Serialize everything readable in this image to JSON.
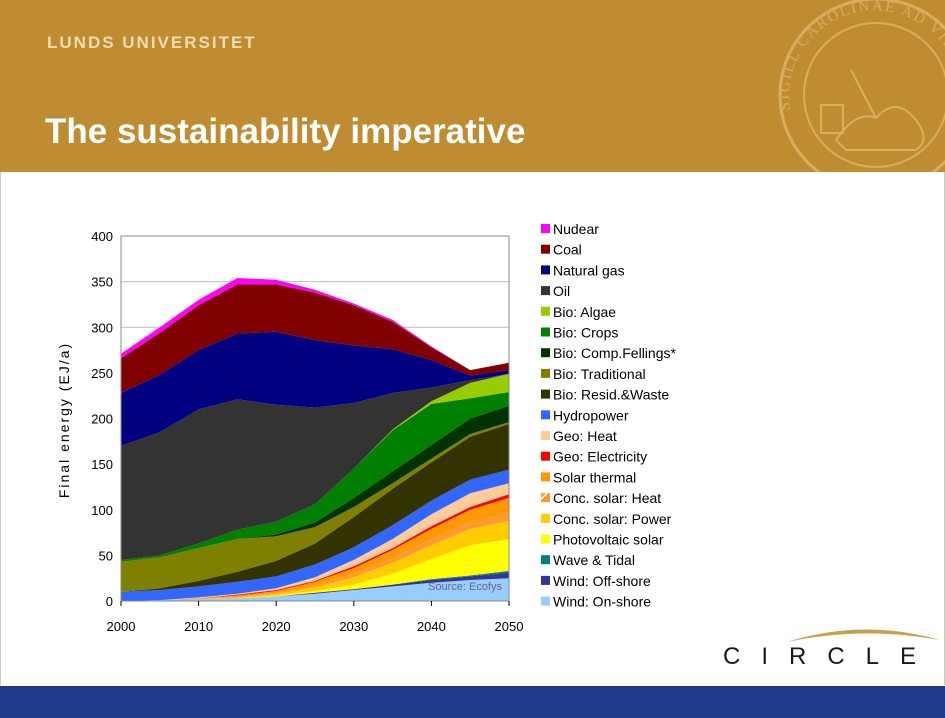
{
  "header": {
    "university": "LUNDS UNIVERSITET",
    "title": "The sustainability imperative",
    "seal_text": "SIGILL CAROLINAE AD VIRUMQUE"
  },
  "logo": {
    "text": "CIRCLE"
  },
  "colors": {
    "header_bg": "#bf8c32",
    "footer_bg": "#1f3a8c"
  },
  "chart_data": {
    "type": "area",
    "stacked": true,
    "ylabel": "Final energy (EJ/a)",
    "xlabel": "",
    "xlim": [
      2000,
      2050
    ],
    "ylim": [
      0,
      400
    ],
    "grid": true,
    "legend_position": "right",
    "annotation": "Source: Ecofys",
    "x": [
      2000,
      2005,
      2010,
      2015,
      2020,
      2025,
      2030,
      2035,
      2040,
      2045,
      2050
    ],
    "x_ticks": [
      "2000",
      "2010",
      "2020",
      "2030",
      "2040",
      "2050"
    ],
    "y_ticks": [
      "0",
      "50",
      "100",
      "150",
      "200",
      "250",
      "300",
      "350",
      "400"
    ],
    "series": [
      {
        "name": "Wind: On-shore",
        "color": "#99ccff",
        "values": [
          0,
          1,
          2,
          3,
          5,
          8,
          12,
          16,
          20,
          23,
          25
        ]
      },
      {
        "name": "Wind: Off-shore",
        "color": "#333399",
        "values": [
          0,
          0,
          0,
          0,
          0,
          1,
          1,
          2,
          3,
          4,
          6
        ]
      },
      {
        "name": "Wave & Tidal",
        "color": "#008080",
        "values": [
          0,
          0,
          0,
          0,
          0,
          0,
          0,
          0,
          1,
          1,
          2
        ]
      },
      {
        "name": "Photovoltaic solar",
        "color": "#ffff00",
        "values": [
          0,
          0,
          0,
          0,
          1,
          2,
          5,
          12,
          22,
          33,
          35
        ]
      },
      {
        "name": "Conc. solar: Power",
        "color": "#ffcc00",
        "values": [
          0,
          0,
          0,
          1,
          2,
          4,
          8,
          12,
          15,
          18,
          20
        ]
      },
      {
        "name": "Conc. solar: Heat",
        "color": "#ff9933",
        "values": [
          0,
          0,
          0,
          1,
          1,
          2,
          4,
          5,
          7,
          8,
          9
        ]
      },
      {
        "name": "Solar thermal",
        "color": "#ff9900",
        "values": [
          0,
          0,
          1,
          1,
          2,
          4,
          6,
          9,
          11,
          13,
          16
        ]
      },
      {
        "name": "Geo: Electricity",
        "color": "#ff0000",
        "values": [
          0,
          0,
          0,
          1,
          1,
          1,
          2,
          2,
          3,
          3,
          4
        ]
      },
      {
        "name": "Geo: Heat",
        "color": "#ffcc99",
        "values": [
          0,
          0,
          1,
          1,
          2,
          4,
          7,
          10,
          13,
          15,
          12
        ]
      },
      {
        "name": "Hydropower",
        "color": "#3366ff",
        "values": [
          10,
          11,
          12,
          13,
          13,
          14,
          14,
          15,
          15,
          15,
          15
        ]
      },
      {
        "name": "Bio: Resid.&Waste",
        "color": "#333300",
        "values": [
          0,
          2,
          6,
          11,
          17,
          23,
          33,
          40,
          42,
          47,
          50
        ]
      },
      {
        "name": "Bio: Traditional",
        "color": "#808000",
        "values": [
          33,
          34,
          36,
          36,
          27,
          18,
          11,
          6,
          4,
          3,
          2
        ]
      },
      {
        "name": "Bio: Comp.Fellings*",
        "color": "#003300",
        "values": [
          0,
          0,
          0,
          0,
          2,
          5,
          10,
          13,
          15,
          17,
          18
        ]
      },
      {
        "name": "Bio: Crops",
        "color": "#008000",
        "values": [
          2,
          2,
          5,
          10,
          14,
          20,
          32,
          45,
          45,
          22,
          15
        ]
      },
      {
        "name": "Bio: Algae",
        "color": "#99cc00",
        "values": [
          0,
          0,
          0,
          0,
          0,
          0,
          0,
          1,
          3,
          17,
          20
        ]
      },
      {
        "name": "Oil",
        "color": "#333333",
        "values": [
          125,
          135,
          147,
          143,
          128,
          106,
          72,
          40,
          15,
          3,
          0
        ]
      },
      {
        "name": "Natural gas",
        "color": "#000080",
        "values": [
          58,
          63,
          65,
          72,
          80,
          74,
          63,
          48,
          30,
          5,
          4
        ]
      },
      {
        "name": "Coal",
        "color": "#800000",
        "values": [
          38,
          46,
          49,
          54,
          52,
          52,
          44,
          30,
          14,
          6,
          8
        ]
      },
      {
        "name": "Nudear",
        "color": "#ff00ff",
        "values": [
          5,
          6,
          6,
          7,
          5,
          3,
          2,
          2,
          1,
          0,
          0
        ]
      }
    ]
  }
}
